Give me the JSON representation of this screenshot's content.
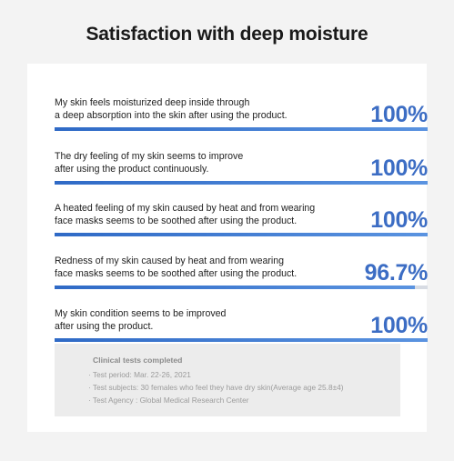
{
  "title": "Satisfaction with deep moisture",
  "chart_data": {
    "type": "bar",
    "categories": [
      "My skin feels moisturized deep inside through\na deep absorption into the skin after using the product.",
      "The dry feeling of my skin seems to improve\nafter using the product continuously.",
      "A heated feeling of my skin caused by heat and from wearing\nface masks seems to be soothed after using the product.",
      "Redness of my skin caused by heat and from wearing\nface masks seems to be soothed after using the product.",
      "My skin condition seems to be improved\nafter using the product."
    ],
    "values": [
      100,
      100,
      100,
      96.7,
      100
    ],
    "value_labels": [
      "100%",
      "100%",
      "100%",
      "96.7%",
      "100%"
    ],
    "xlim": [
      0,
      100
    ],
    "colors": {
      "bar": "#3c6dc4",
      "track": "#d7dbe3"
    }
  },
  "info": {
    "heading": "Clinical tests completed",
    "lines": [
      "· Test period: Mar. 22-26, 2021",
      "· Test subjects: 30 females who feel they have dry skin(Average age 25.8±4)",
      "· Test Agency : Global Medical Research Center"
    ]
  }
}
